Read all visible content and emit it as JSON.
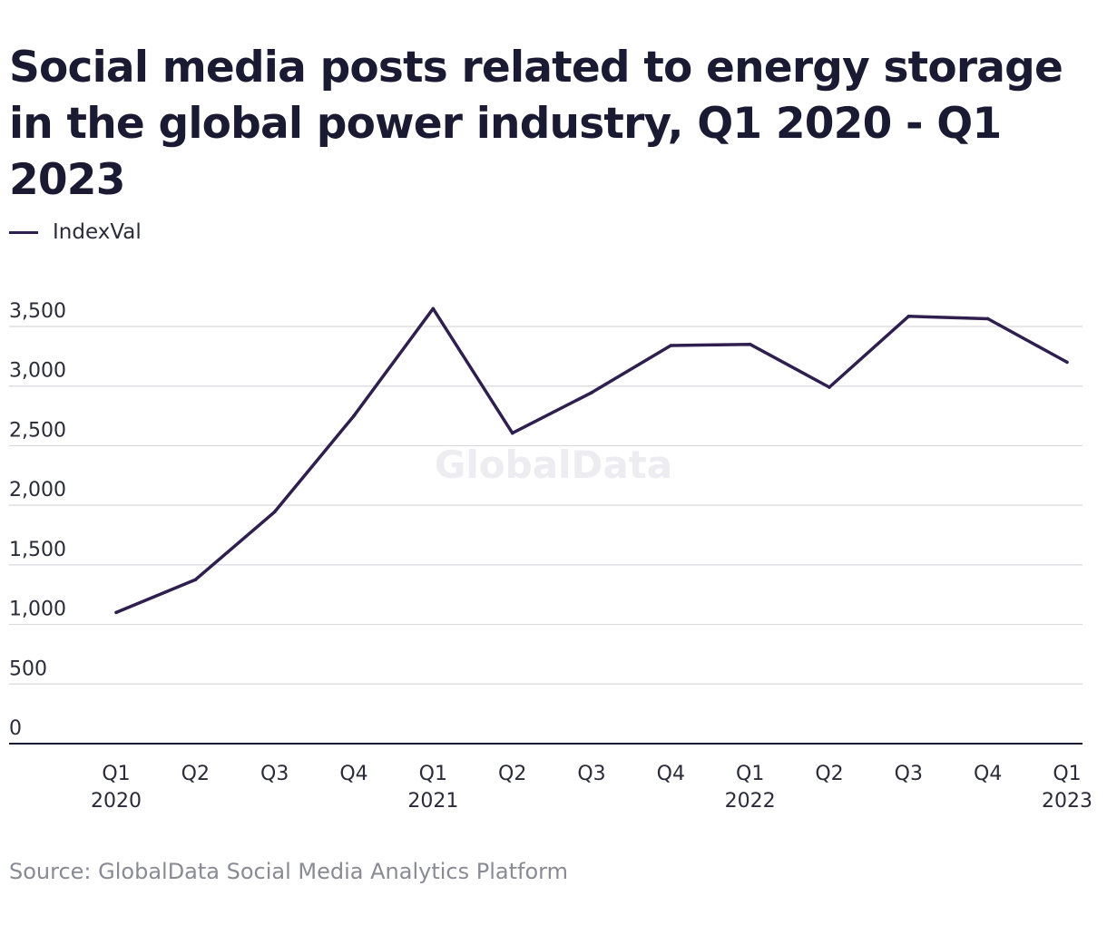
{
  "chart_data": {
    "type": "line",
    "title": "Social media posts related to energy storage in the global power industry, Q1 2020 - Q1 2023",
    "categories": [
      [
        "Q1",
        "2020"
      ],
      [
        "Q2",
        ""
      ],
      [
        "Q3",
        ""
      ],
      [
        "Q4",
        ""
      ],
      [
        "Q1",
        "2021"
      ],
      [
        "Q2",
        ""
      ],
      [
        "Q3",
        ""
      ],
      [
        "Q4",
        ""
      ],
      [
        "Q1",
        "2022"
      ],
      [
        "Q2",
        ""
      ],
      [
        "Q3",
        ""
      ],
      [
        "Q4",
        ""
      ],
      [
        "Q1",
        "2023"
      ]
    ],
    "series": [
      {
        "name": "IndexVal",
        "color": "#2e1f4f",
        "values": [
          1100,
          1375,
          1945,
          2750,
          3650,
          2605,
          2945,
          3340,
          3350,
          2990,
          3585,
          3565,
          3200
        ]
      }
    ],
    "yticks": [
      "0",
      "500",
      "1,000",
      "1,500",
      "2,000",
      "2,500",
      "3,000",
      "3,500"
    ],
    "ylim": [
      0,
      3500
    ],
    "xlabel": "",
    "ylabel": "",
    "grid": true,
    "legend_position": "top-left"
  },
  "watermark": "GlobalData",
  "source": "Source: GlobalData Social Media Analytics Platform"
}
